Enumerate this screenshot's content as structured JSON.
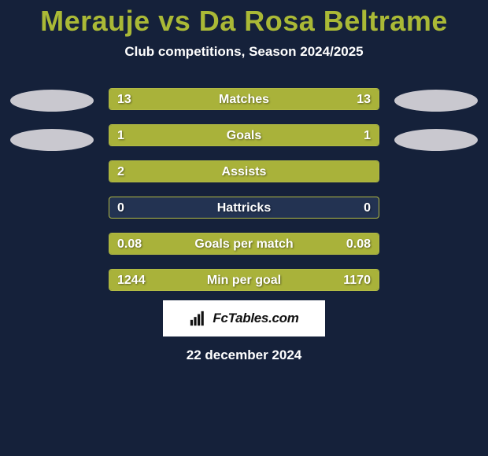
{
  "colors": {
    "background": "#15213a",
    "title": "#aab936",
    "subtitle": "#ffffff",
    "bar_fill": "#a9b23a",
    "bar_empty": "#233352",
    "bar_border": "#b2ba44",
    "emblem_bg": "#c9c8cf",
    "badge_bg": "#ffffff"
  },
  "header": {
    "title": "Merauje vs Da Rosa Beltrame",
    "subtitle": "Club competitions, Season 2024/2025"
  },
  "emblems": {
    "left_count": 2,
    "right_count": 2
  },
  "rows": [
    {
      "label": "Matches",
      "left": "13",
      "right": "13",
      "left_pct": 50,
      "right_pct": 50
    },
    {
      "label": "Goals",
      "left": "1",
      "right": "1",
      "left_pct": 50,
      "right_pct": 50
    },
    {
      "label": "Assists",
      "left": "2",
      "right": "",
      "left_pct": 100,
      "right_pct": 0
    },
    {
      "label": "Hattricks",
      "left": "0",
      "right": "0",
      "left_pct": 0,
      "right_pct": 0
    },
    {
      "label": "Goals per match",
      "left": "0.08",
      "right": "0.08",
      "left_pct": 50,
      "right_pct": 50
    },
    {
      "label": "Min per goal",
      "left": "1244",
      "right": "1170",
      "left_pct": 52,
      "right_pct": 48
    }
  ],
  "badge": {
    "text": "FcTables.com"
  },
  "footer": {
    "date": "22 december 2024"
  }
}
